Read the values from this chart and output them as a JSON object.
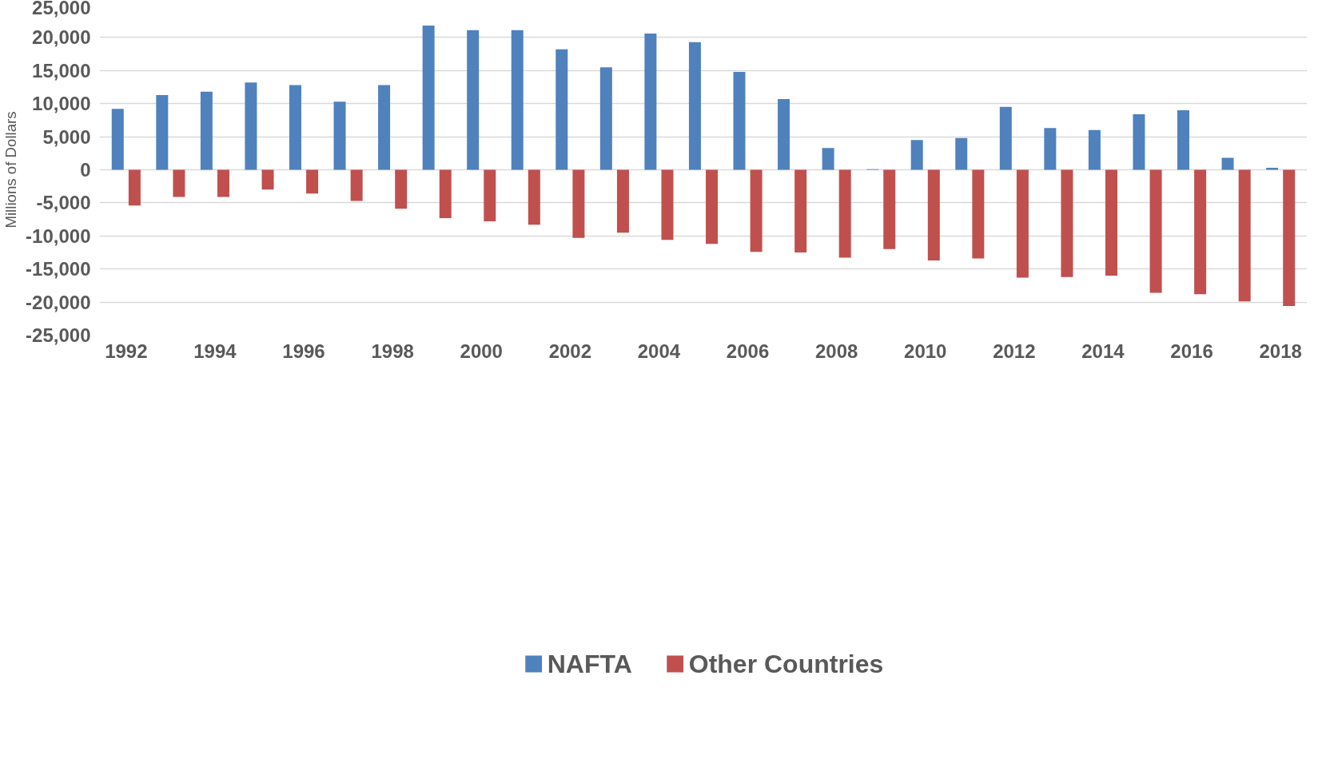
{
  "chart_data": {
    "type": "bar",
    "ylabel": "Millions of Dollars",
    "categories": [
      "1992",
      null,
      "1994",
      null,
      "1996",
      null,
      "1998",
      null,
      "2000",
      null,
      "2002",
      null,
      "2004",
      null,
      "2006",
      null,
      "2008",
      null,
      "2010",
      null,
      "2012",
      null,
      "2014",
      null,
      "2016",
      null,
      "2018"
    ],
    "series": [
      {
        "name": "NAFTA",
        "color": "#4f81bd",
        "values": [
          9200,
          11300,
          11800,
          13200,
          12800,
          10300,
          12800,
          21800,
          21100,
          21100,
          18200,
          15500,
          20600,
          19300,
          14800,
          10700,
          3300,
          100,
          4500,
          4800,
          9500,
          6300,
          6000,
          8400,
          9000,
          1800,
          300
        ]
      },
      {
        "name": "Other Countries",
        "color": "#c0504d",
        "values": [
          -5400,
          -4100,
          -4100,
          -3000,
          -3600,
          -4700,
          -5900,
          -7300,
          -7800,
          -8300,
          -10300,
          -9500,
          -10600,
          -11200,
          -12400,
          -12500,
          -13300,
          -12000,
          -13700,
          -13400,
          -16300,
          -16200,
          -16000,
          -18600,
          -18800,
          -19900,
          -20600
        ]
      }
    ],
    "ylim": [
      -25000,
      25000
    ],
    "yticks": [
      {
        "value": -25000,
        "label": "-25,000"
      },
      {
        "value": -20000,
        "label": "-20,000"
      },
      {
        "value": -15000,
        "label": "-15,000"
      },
      {
        "value": -10000,
        "label": "-10,000"
      },
      {
        "value": -5000,
        "label": "-5,000"
      },
      0,
      {
        "value": 5000,
        "label": "5,000"
      },
      {
        "value": 10000,
        "label": "10,000"
      },
      {
        "value": 15000,
        "label": "15,000"
      },
      {
        "value": 20000,
        "label": "20,000"
      },
      {
        "value": 25000,
        "label": "25,000"
      }
    ],
    "grid": "y",
    "legend": "bottom"
  }
}
